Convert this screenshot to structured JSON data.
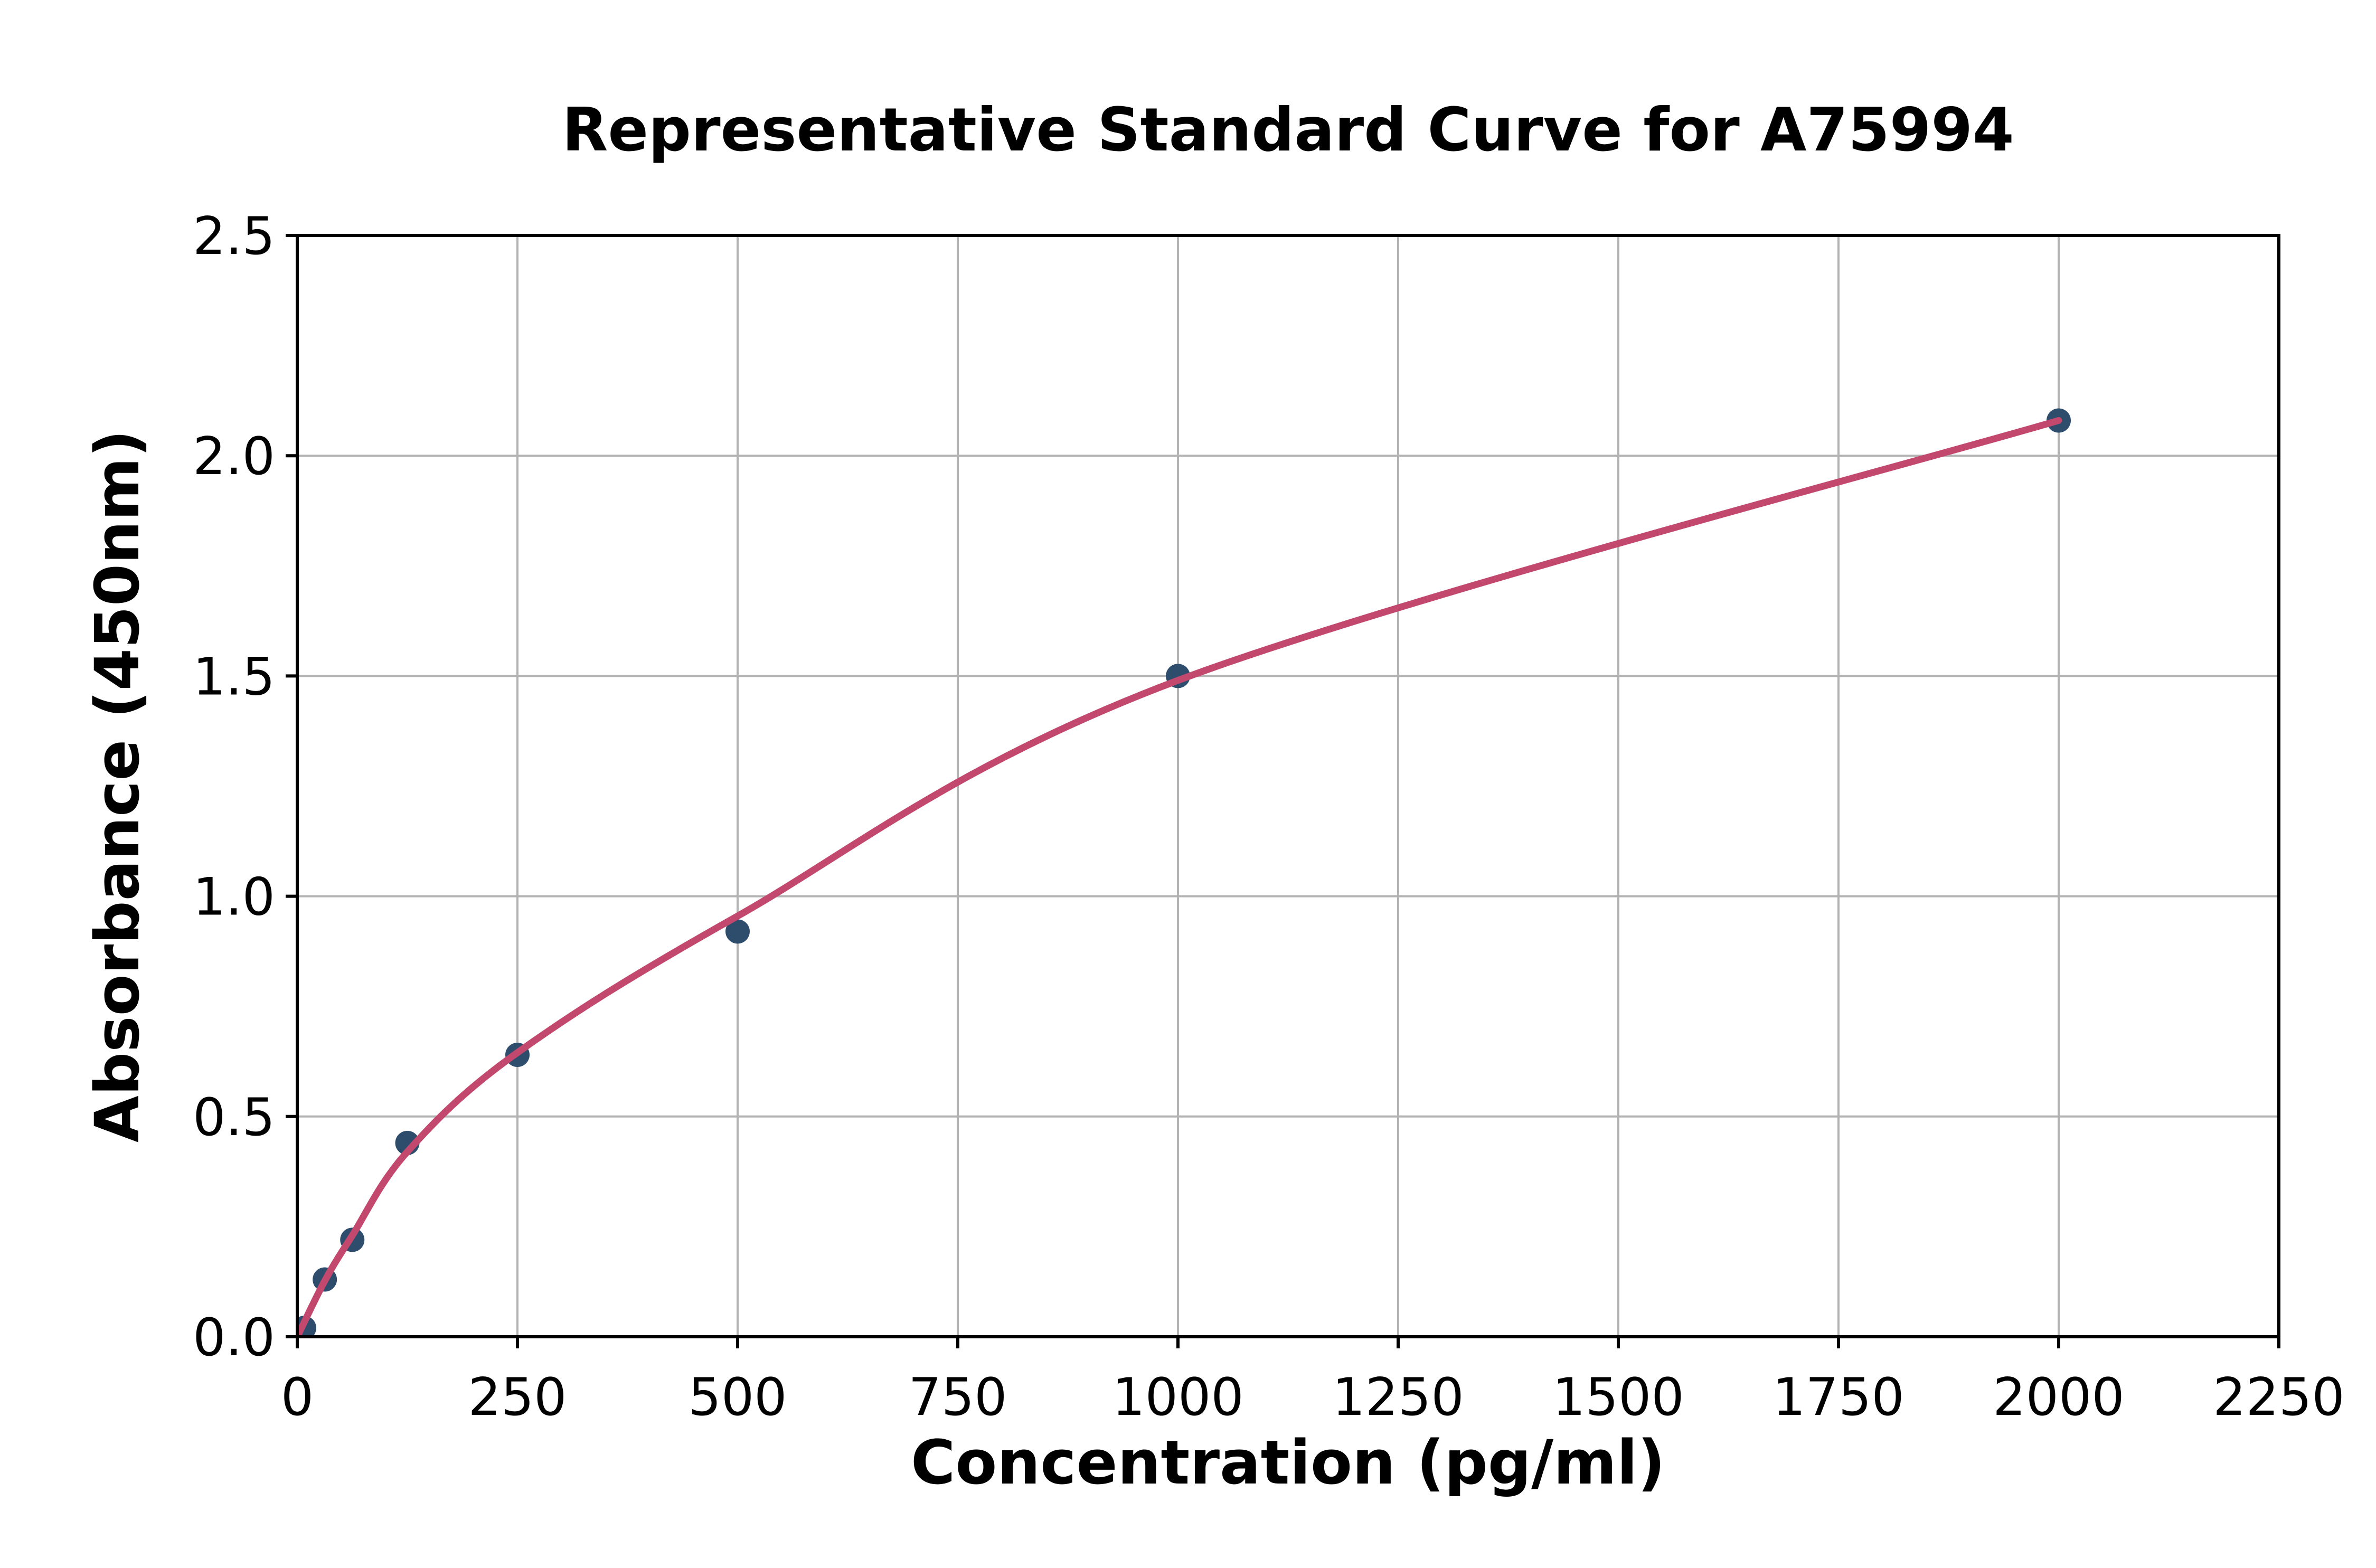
{
  "chart_data": {
    "type": "scatter",
    "title": "Representative Standard Curve for A75994",
    "xlabel": "Concentration (pg/ml)",
    "ylabel": "Absorbance (450nm)",
    "xlim": [
      0,
      2250
    ],
    "ylim": [
      0,
      2.5
    ],
    "xtick_values": [
      0,
      250,
      500,
      750,
      1000,
      1250,
      1500,
      1750,
      2000,
      2250
    ],
    "xtick_labels": [
      "0",
      "250",
      "500",
      "750",
      "1000",
      "1250",
      "1500",
      "1750",
      "2000",
      "2250"
    ],
    "ytick_values": [
      0,
      0.5,
      1.0,
      1.5,
      2.0,
      2.5
    ],
    "ytick_labels": [
      "0.0",
      "0.5",
      "1.0",
      "1.5",
      "2.0",
      "2.5"
    ],
    "grid": true,
    "legend_position": "none",
    "series": [
      {
        "name": "standard-points",
        "type": "scatter",
        "marker_color": "#2e4d6d",
        "points": [
          {
            "x": 7.8,
            "y": 0.02
          },
          {
            "x": 31.25,
            "y": 0.13
          },
          {
            "x": 62.5,
            "y": 0.22
          },
          {
            "x": 125,
            "y": 0.44
          },
          {
            "x": 250,
            "y": 0.64
          },
          {
            "x": 500,
            "y": 0.92
          },
          {
            "x": 1000,
            "y": 1.5
          },
          {
            "x": 2000,
            "y": 2.08
          }
        ]
      },
      {
        "name": "fitted-curve",
        "type": "line",
        "line_color": "#c2486e",
        "points": [
          {
            "x": 0,
            "y": 0.0
          },
          {
            "x": 31.25,
            "y": 0.127
          },
          {
            "x": 62.5,
            "y": 0.23
          },
          {
            "x": 125,
            "y": 0.42
          },
          {
            "x": 250,
            "y": 0.645
          },
          {
            "x": 500,
            "y": 0.955
          },
          {
            "x": 1000,
            "y": 1.49
          },
          {
            "x": 2000,
            "y": 2.08
          }
        ]
      }
    ],
    "colors": {
      "grid": "#b3b3b3",
      "axis": "#000000",
      "background": "#ffffff",
      "curve": "#c2486e",
      "marker": "#2e4d6d"
    }
  }
}
